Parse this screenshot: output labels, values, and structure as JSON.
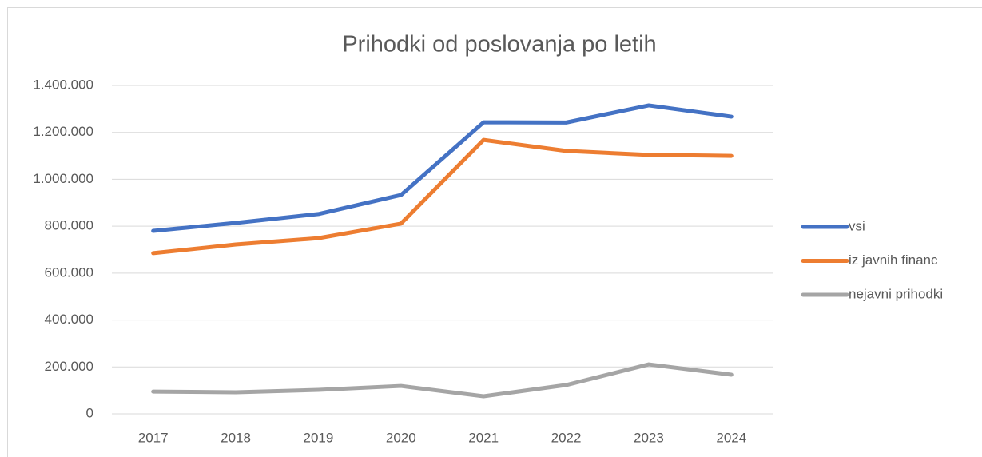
{
  "chart_data": {
    "type": "line",
    "title": "Prihodki od poslovanja po letih",
    "categories": [
      "2017",
      "2018",
      "2019",
      "2020",
      "2021",
      "2022",
      "2023",
      "2024"
    ],
    "series": [
      {
        "name": "vsi",
        "color": "#4472c4",
        "values": [
          780000,
          814000,
          852000,
          933000,
          1243000,
          1242000,
          1315000,
          1267000
        ]
      },
      {
        "name": "iz javnih financ",
        "color": "#ed7d31",
        "values": [
          685000,
          722000,
          749000,
          811000,
          1168000,
          1121000,
          1104000,
          1100000
        ]
      },
      {
        "name": "nejavni prihodki",
        "color": "#a5a5a5",
        "values": [
          95000,
          92000,
          102000,
          119000,
          75000,
          123000,
          211000,
          167000
        ]
      }
    ],
    "ylim": [
      0,
      1400000
    ],
    "yticks": [
      0,
      {
        "value": 200000,
        "label": "200.000"
      },
      {
        "value": 400000,
        "label": "400.000"
      },
      {
        "value": 600000,
        "label": "600.000"
      },
      {
        "value": 800000,
        "label": "800.000"
      },
      {
        "value": 1000000,
        "label": "1.000.000"
      },
      {
        "value": 1200000,
        "label": "1.200.000"
      },
      {
        "value": 1400000,
        "label": "1.400.000"
      }
    ],
    "grid": true,
    "legend": "right"
  }
}
